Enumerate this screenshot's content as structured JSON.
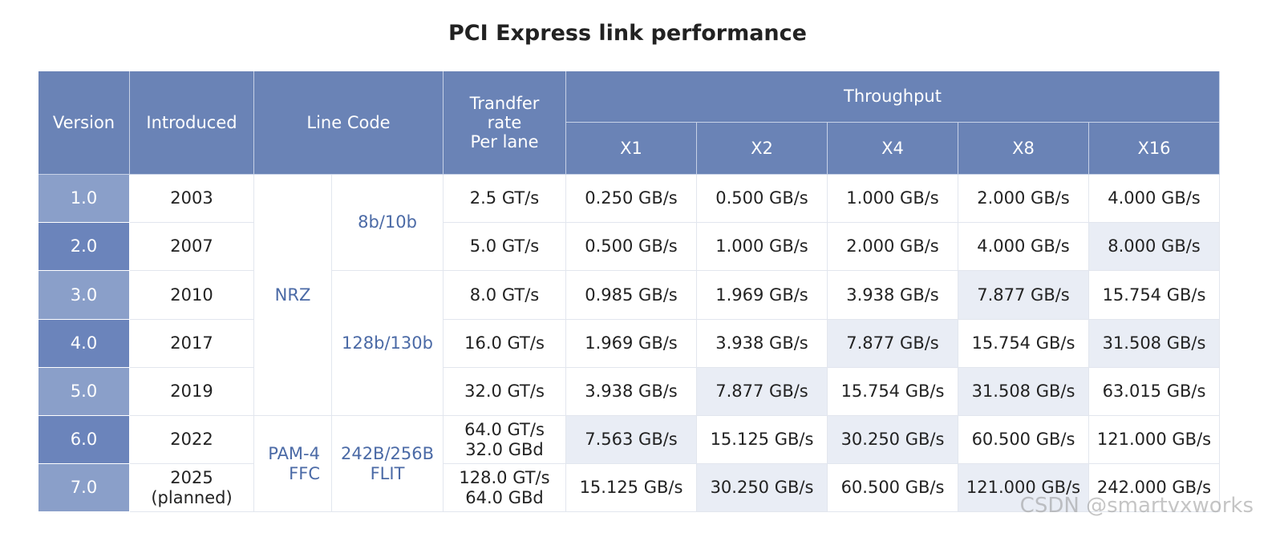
{
  "title": "PCI Express link performance",
  "header": {
    "version": "Version",
    "introduced": "Introduced",
    "line_code": "Line Code",
    "transfer_rate": [
      "Trandfer",
      "rate",
      "Per lane"
    ],
    "throughput": "Throughput",
    "lanes": [
      "X1",
      "X2",
      "X4",
      "X8",
      "X16"
    ]
  },
  "modulation": [
    [
      "NRZ"
    ],
    [
      "PAM-4",
      "FFC"
    ]
  ],
  "encoding": [
    [
      "8b/10b"
    ],
    [
      "128b/130b"
    ],
    [
      "242B/256B",
      "FLIT"
    ]
  ],
  "rows": [
    {
      "version": "1.0",
      "introduced": [
        "2003"
      ],
      "transfer_rate": [
        "2.5 GT/s"
      ],
      "throughput": [
        "0.250 GB/s",
        "0.500 GB/s",
        "1.000 GB/s",
        "2.000 GB/s",
        "4.000 GB/s"
      ]
    },
    {
      "version": "2.0",
      "introduced": [
        "2007"
      ],
      "transfer_rate": [
        "5.0 GT/s"
      ],
      "throughput": [
        "0.500 GB/s",
        "1.000 GB/s",
        "2.000 GB/s",
        "4.000 GB/s",
        "8.000 GB/s"
      ]
    },
    {
      "version": "3.0",
      "introduced": [
        "2010"
      ],
      "transfer_rate": [
        "8.0 GT/s"
      ],
      "throughput": [
        "0.985 GB/s",
        "1.969 GB/s",
        "3.938 GB/s",
        "7.877 GB/s",
        "15.754 GB/s"
      ]
    },
    {
      "version": "4.0",
      "introduced": [
        "2017"
      ],
      "transfer_rate": [
        "16.0 GT/s"
      ],
      "throughput": [
        "1.969 GB/s",
        "3.938 GB/s",
        "7.877 GB/s",
        "15.754 GB/s",
        "31.508 GB/s"
      ]
    },
    {
      "version": "5.0",
      "introduced": [
        "2019"
      ],
      "transfer_rate": [
        "32.0 GT/s"
      ],
      "throughput": [
        "3.938 GB/s",
        "7.877 GB/s",
        "15.754 GB/s",
        "31.508 GB/s",
        "63.015 GB/s"
      ]
    },
    {
      "version": "6.0",
      "introduced": [
        "2022"
      ],
      "transfer_rate": [
        "64.0 GT/s",
        "32.0 GBd"
      ],
      "throughput": [
        "7.563 GB/s",
        "15.125 GB/s",
        "30.250 GB/s",
        "60.500 GB/s",
        "121.000 GB/s"
      ]
    },
    {
      "version": "7.0",
      "introduced": [
        "2025",
        "(planned)"
      ],
      "transfer_rate": [
        "128.0 GT/s",
        "64.0 GBd"
      ],
      "throughput": [
        "15.125 GB/s",
        "30.250 GB/s",
        "60.500 GB/s",
        "121.000 GB/s",
        "242.000 GB/s"
      ]
    }
  ],
  "watermark": "CSDN @smartvxworks"
}
